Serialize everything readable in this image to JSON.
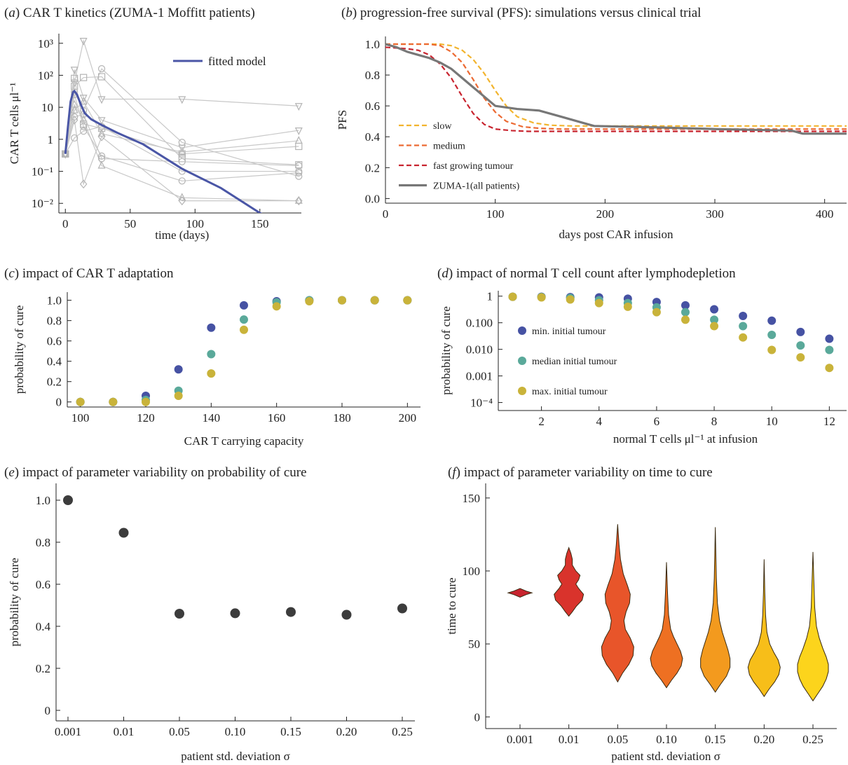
{
  "panels": {
    "a": {
      "letter": "a",
      "title": "CAR T kinetics (ZUMA-1 Moffitt patients)"
    },
    "b": {
      "letter": "b",
      "title": "progression-free survival (PFS): simulations versus clinical trial"
    },
    "c": {
      "letter": "c",
      "title": "impact of CAR T adaptation"
    },
    "d": {
      "letter": "d",
      "title": "impact of normal T cell count after lymphodepletion"
    },
    "e": {
      "letter": "e",
      "title": "impact of parameter variability on probability of cure"
    },
    "f": {
      "letter": "f",
      "title": "impact of parameter variability on time to cure"
    }
  },
  "chart_data": [
    {
      "id": "a",
      "type": "line",
      "xlabel": "time (days)",
      "ylabel": "CAR T cells μl⁻¹",
      "yscale": "log",
      "xlim": [
        -5,
        182
      ],
      "ylim": [
        0.005,
        2000
      ],
      "xticks": [
        0,
        50,
        100,
        150
      ],
      "yticks": [
        {
          "v": 0.01,
          "label": "10⁻²"
        },
        {
          "v": 0.1,
          "label": "10⁻¹"
        },
        {
          "v": 1,
          "label": "1"
        },
        {
          "v": 10,
          "label": "10"
        },
        {
          "v": 100,
          "label": "10²"
        },
        {
          "v": 1000,
          "label": "10³"
        }
      ],
      "legend": [
        {
          "label": "fitted model",
          "color": "#4a56a6"
        }
      ],
      "model": {
        "x": [
          0,
          2,
          4,
          6,
          7,
          9,
          12,
          15,
          20,
          28,
          40,
          60,
          90,
          120,
          150,
          178
        ],
        "y": [
          0.35,
          2.5,
          15,
          30,
          32,
          25,
          12,
          6.5,
          4.2,
          2.8,
          1.6,
          0.7,
          0.12,
          0.03,
          0.005,
          0.0015
        ]
      },
      "patient_x": [
        0,
        7,
        14,
        28,
        90,
        180
      ],
      "patients": [
        {
          "marker": "circle",
          "y": [
            0.35,
            30,
            8,
            160,
            0.8,
            0.07
          ]
        },
        {
          "marker": "square",
          "y": [
            0.35,
            45,
            85,
            90,
            0.25,
            0.16
          ]
        },
        {
          "marker": "triangle-down",
          "y": [
            0.35,
            60,
            1200,
            18,
            18,
            11
          ]
        },
        {
          "marker": "triangle-down",
          "y": [
            0.35,
            150,
            20,
            4,
            0.55,
            1.9
          ]
        },
        {
          "marker": "triangle",
          "y": [
            0.35,
            12,
            4,
            0.15,
            0.015,
            0.012
          ]
        },
        {
          "marker": "diamond",
          "y": [
            0.35,
            4,
            0.04,
            1.2,
            0.012,
            0.012
          ]
        },
        {
          "marker": "circle",
          "y": [
            0.35,
            25,
            2.5,
            0.3,
            0.05,
            0.09
          ]
        },
        {
          "marker": "square",
          "y": [
            0.35,
            80,
            3,
            2.2,
            0.35,
            0.6
          ]
        },
        {
          "marker": "circle",
          "y": [
            0.35,
            1.1,
            1.8,
            2.5,
            0.1,
            0.1
          ]
        },
        {
          "marker": "triangle",
          "y": [
            0.35,
            8,
            15,
            1.5,
            0.4,
            0.9
          ]
        },
        {
          "marker": "circle",
          "y": [
            0.35,
            5,
            6,
            0.25,
            0.2,
            0.15
          ]
        }
      ]
    },
    {
      "id": "b",
      "type": "line",
      "xlabel": "days post CAR infusion",
      "ylabel": "PFS",
      "xlim": [
        0,
        420
      ],
      "ylim": [
        -0.03,
        1.05
      ],
      "xticks": [
        0,
        100,
        200,
        300,
        400
      ],
      "yticks": [
        0.0,
        0.2,
        0.4,
        0.6,
        0.8,
        1.0
      ],
      "series": [
        {
          "name": "slow",
          "color": "#f2b42e",
          "dash": "7,4",
          "x": [
            0,
            50,
            60,
            70,
            80,
            90,
            100,
            110,
            120,
            135,
            150,
            170,
            190,
            420
          ],
          "y": [
            1.0,
            1.0,
            0.99,
            0.96,
            0.9,
            0.81,
            0.7,
            0.6,
            0.53,
            0.49,
            0.475,
            0.47,
            0.47,
            0.47
          ]
        },
        {
          "name": "medium",
          "color": "#ec6a33",
          "dash": "7,4",
          "x": [
            0,
            40,
            50,
            60,
            70,
            80,
            90,
            100,
            110,
            125,
            140,
            160,
            420
          ],
          "y": [
            1.0,
            1.0,
            0.99,
            0.95,
            0.88,
            0.77,
            0.65,
            0.56,
            0.5,
            0.465,
            0.455,
            0.45,
            0.45
          ]
        },
        {
          "name": "fast growing tumour",
          "color": "#c8242f",
          "dash": "7,4",
          "x": [
            0,
            20,
            30,
            40,
            50,
            60,
            70,
            80,
            90,
            100,
            115,
            130,
            420
          ],
          "y": [
            0.98,
            0.97,
            0.96,
            0.93,
            0.87,
            0.78,
            0.66,
            0.55,
            0.48,
            0.45,
            0.44,
            0.435,
            0.435
          ]
        },
        {
          "name": "ZUMA-1(all patients)",
          "color": "#777777",
          "dash": "",
          "x": [
            0,
            10,
            20,
            30,
            40,
            50,
            60,
            70,
            80,
            90,
            100,
            120,
            140,
            160,
            180,
            190,
            250,
            300,
            370,
            380,
            420
          ],
          "y": [
            1.0,
            0.98,
            0.95,
            0.93,
            0.91,
            0.88,
            0.84,
            0.78,
            0.72,
            0.66,
            0.6,
            0.58,
            0.57,
            0.53,
            0.49,
            0.47,
            0.46,
            0.45,
            0.44,
            0.42,
            0.42
          ]
        }
      ]
    },
    {
      "id": "c",
      "type": "scatter",
      "xlabel": "CAR T carrying capacity",
      "ylabel": "probability of cure",
      "xlim": [
        96,
        204
      ],
      "ylim": [
        -0.05,
        1.08
      ],
      "xticks": [
        100,
        120,
        140,
        160,
        180,
        200
      ],
      "yticks": [
        0,
        0.2,
        0.4,
        0.6,
        0.8,
        1.0
      ],
      "x": [
        100,
        110,
        120,
        130,
        140,
        150,
        160,
        170,
        180,
        190,
        200
      ],
      "series": [
        {
          "color": "#4652a3",
          "values": [
            0,
            0,
            0.06,
            0.32,
            0.73,
            0.95,
            0.99,
            1.0,
            1.0,
            1.0,
            1.0
          ]
        },
        {
          "color": "#5aa99a",
          "values": [
            0,
            0,
            0.02,
            0.11,
            0.47,
            0.81,
            0.98,
            1.0,
            1.0,
            1.0,
            1.0
          ]
        },
        {
          "color": "#c9b33a",
          "values": [
            0,
            0,
            0.0,
            0.06,
            0.28,
            0.71,
            0.94,
            0.99,
            1.0,
            1.0,
            1.0
          ]
        }
      ]
    },
    {
      "id": "d",
      "type": "scatter",
      "xlabel": "normal T cells μl⁻¹ at infusion",
      "ylabel": "probability of cure",
      "yscale": "log",
      "xlim": [
        0.5,
        12.6
      ],
      "ylim": [
        5e-05,
        1.6
      ],
      "xticks": [
        2,
        4,
        6,
        8,
        10,
        12
      ],
      "yticks": [
        {
          "v": 0.0001,
          "label": "10⁻⁴"
        },
        {
          "v": 0.001,
          "label": "0.001"
        },
        {
          "v": 0.01,
          "label": "0.010"
        },
        {
          "v": 0.1,
          "label": "0.100"
        },
        {
          "v": 1,
          "label": "1"
        }
      ],
      "x": [
        1,
        2,
        3,
        4,
        5,
        6,
        7,
        8,
        9,
        10,
        11,
        12
      ],
      "series": [
        {
          "name": "min. initial tumour",
          "color": "#4652a3",
          "values": [
            0.95,
            0.95,
            0.92,
            0.9,
            0.8,
            0.6,
            0.45,
            0.32,
            0.18,
            0.12,
            0.045,
            0.025
          ]
        },
        {
          "name": "median initial tumour",
          "color": "#5aa99a",
          "values": [
            0.95,
            0.93,
            0.86,
            0.7,
            0.55,
            0.38,
            0.25,
            0.13,
            0.075,
            0.035,
            0.014,
            0.0095
          ]
        },
        {
          "name": "max. initial tumour",
          "color": "#c9b33a",
          "values": [
            0.95,
            0.9,
            0.75,
            0.55,
            0.4,
            0.25,
            0.13,
            0.075,
            0.028,
            0.0095,
            0.005,
            0.002
          ]
        }
      ]
    },
    {
      "id": "e",
      "type": "scatter",
      "xlabel": "patient std. deviation σ",
      "ylabel": "probability of cure",
      "ylim": [
        -0.05,
        1.08
      ],
      "categories": [
        "0.001",
        "0.01",
        "0.05",
        "0.10",
        "0.15",
        "0.20",
        "0.25"
      ],
      "yticks": [
        0,
        0.2,
        0.4,
        0.6,
        0.8,
        1.0
      ],
      "color": "#3c3c3c",
      "values": [
        1.0,
        0.845,
        0.46,
        0.462,
        0.468,
        0.455,
        0.485
      ]
    },
    {
      "id": "f",
      "type": "violin",
      "xlabel": "patient std. deviation σ",
      "ylabel": "time to cure",
      "ylim": [
        -8,
        160
      ],
      "yticks": [
        0,
        50,
        100,
        150
      ],
      "categories": [
        "0.001",
        "0.01",
        "0.05",
        "0.10",
        "0.15",
        "0.20",
        "0.25"
      ],
      "violins": [
        {
          "color": "#c8242f",
          "min": 82,
          "max": 88,
          "profile": [
            [
              82,
              0
            ],
            [
              84,
              10
            ],
            [
              85,
              17
            ],
            [
              86,
              10
            ],
            [
              88,
              0
            ]
          ]
        },
        {
          "color": "#d9332c",
          "min": 69,
          "max": 116,
          "profile": [
            [
              69,
              0
            ],
            [
              72,
              5
            ],
            [
              76,
              11
            ],
            [
              80,
              19
            ],
            [
              84,
              21
            ],
            [
              88,
              14
            ],
            [
              91,
              10
            ],
            [
              94,
              14
            ],
            [
              97,
              16
            ],
            [
              100,
              10
            ],
            [
              104,
              5
            ],
            [
              108,
              5
            ],
            [
              112,
              3
            ],
            [
              116,
              0
            ]
          ]
        },
        {
          "color": "#e8552a",
          "min": 24,
          "max": 132,
          "profile": [
            [
              24,
              0
            ],
            [
              30,
              7
            ],
            [
              36,
              16
            ],
            [
              42,
              22
            ],
            [
              48,
              23
            ],
            [
              54,
              18
            ],
            [
              60,
              11
            ],
            [
              66,
              9
            ],
            [
              72,
              12
            ],
            [
              78,
              17
            ],
            [
              84,
              18
            ],
            [
              90,
              14
            ],
            [
              98,
              8
            ],
            [
              108,
              4
            ],
            [
              118,
              2
            ],
            [
              132,
              0
            ]
          ]
        },
        {
          "color": "#ee7022",
          "min": 20,
          "max": 106,
          "profile": [
            [
              20,
              0
            ],
            [
              25,
              7
            ],
            [
              30,
              15
            ],
            [
              35,
              21
            ],
            [
              40,
              23
            ],
            [
              45,
              20
            ],
            [
              50,
              15
            ],
            [
              55,
              10
            ],
            [
              60,
              6
            ],
            [
              70,
              3
            ],
            [
              85,
              1.5
            ],
            [
              106,
              0
            ]
          ]
        },
        {
          "color": "#f39a1e",
          "min": 17,
          "max": 130,
          "profile": [
            [
              17,
              0
            ],
            [
              22,
              7
            ],
            [
              28,
              16
            ],
            [
              34,
              21
            ],
            [
              40,
              21
            ],
            [
              46,
              18
            ],
            [
              52,
              14
            ],
            [
              58,
              10
            ],
            [
              66,
              6
            ],
            [
              78,
              3
            ],
            [
              95,
              1.5
            ],
            [
              130,
              0
            ]
          ]
        },
        {
          "color": "#f7be19",
          "min": 14,
          "max": 108,
          "profile": [
            [
              14,
              0
            ],
            [
              19,
              7
            ],
            [
              24,
              15
            ],
            [
              29,
              21
            ],
            [
              34,
              23
            ],
            [
              39,
              20
            ],
            [
              44,
              14
            ],
            [
              50,
              8
            ],
            [
              58,
              4
            ],
            [
              70,
              2
            ],
            [
              85,
              1
            ],
            [
              108,
              0
            ]
          ]
        },
        {
          "color": "#fcd41c",
          "min": 11,
          "max": 113,
          "profile": [
            [
              11,
              0
            ],
            [
              16,
              7
            ],
            [
              21,
              14
            ],
            [
              26,
              19
            ],
            [
              31,
              22
            ],
            [
              36,
              22
            ],
            [
              41,
              19
            ],
            [
              47,
              14
            ],
            [
              54,
              9
            ],
            [
              62,
              5
            ],
            [
              75,
              2.5
            ],
            [
              90,
              1.5
            ],
            [
              113,
              0
            ]
          ]
        }
      ]
    }
  ]
}
